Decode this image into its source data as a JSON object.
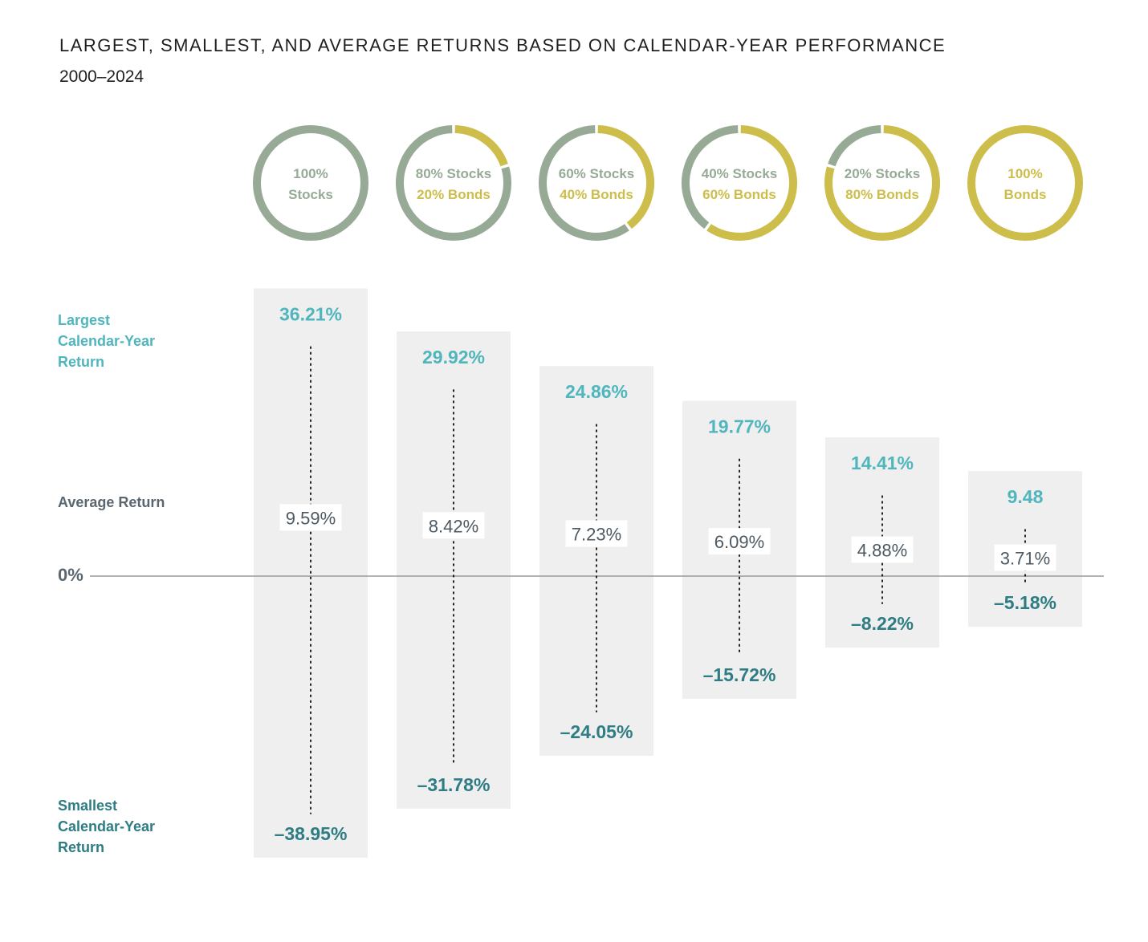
{
  "title": "LARGEST, SMALLEST, AND AVERAGE RETURNS BASED ON CALENDAR-YEAR PERFORMANCE",
  "subtitle": "2000–2024",
  "labels": {
    "largest_line1": "Largest",
    "largest_line2": "Calendar-Year",
    "largest_line3": "Return",
    "average": "Average Return",
    "zero": "0%",
    "smallest_line1": "Smallest",
    "smallest_line2": "Calendar-Year",
    "smallest_line3": "Return"
  },
  "colors": {
    "stocks": "#97aa96",
    "bonds": "#cdbd4a",
    "largest_text": "#4fb6bd",
    "smallest_text": "#2e7d84",
    "average_text": "#4e5a63",
    "band": "#efefef",
    "axis": "#9a9a9a"
  },
  "chart_data": {
    "type": "range",
    "title": "LARGEST, SMALLEST, AND AVERAGE RETURNS BASED ON CALENDAR-YEAR PERFORMANCE",
    "subtitle": "2000–2024",
    "ylim": [
      -38.95,
      36.21
    ],
    "portfolios": [
      {
        "stocks_pct": 100,
        "bonds_pct": 0,
        "line1": "100%",
        "line2": "Stocks",
        "largest": 36.21,
        "average": 9.59,
        "smallest": -38.95,
        "largest_label": "36.21%",
        "average_label": "9.59%",
        "smallest_label": "–38.95%"
      },
      {
        "stocks_pct": 80,
        "bonds_pct": 20,
        "line1": "80% Stocks",
        "line2": "20% Bonds",
        "largest": 29.92,
        "average": 8.42,
        "smallest": -31.78,
        "largest_label": "29.92%",
        "average_label": "8.42%",
        "smallest_label": "–31.78%"
      },
      {
        "stocks_pct": 60,
        "bonds_pct": 40,
        "line1": "60% Stocks",
        "line2": "40% Bonds",
        "largest": 24.86,
        "average": 7.23,
        "smallest": -24.05,
        "largest_label": "24.86%",
        "average_label": "7.23%",
        "smallest_label": "–24.05%"
      },
      {
        "stocks_pct": 40,
        "bonds_pct": 60,
        "line1": "40% Stocks",
        "line2": "60% Bonds",
        "largest": 19.77,
        "average": 6.09,
        "smallest": -15.72,
        "largest_label": "19.77%",
        "average_label": "6.09%",
        "smallest_label": "–15.72%"
      },
      {
        "stocks_pct": 20,
        "bonds_pct": 80,
        "line1": "20% Stocks",
        "line2": "80% Bonds",
        "largest": 14.41,
        "average": 4.88,
        "smallest": -8.22,
        "largest_label": "14.41%",
        "average_label": "4.88%",
        "smallest_label": "–8.22%"
      },
      {
        "stocks_pct": 0,
        "bonds_pct": 100,
        "line1": "100%",
        "line2": "Bonds",
        "largest": 9.48,
        "average": 3.71,
        "smallest": -5.18,
        "largest_label": "9.48",
        "average_label": "3.71%",
        "smallest_label": "–5.18%"
      }
    ]
  }
}
